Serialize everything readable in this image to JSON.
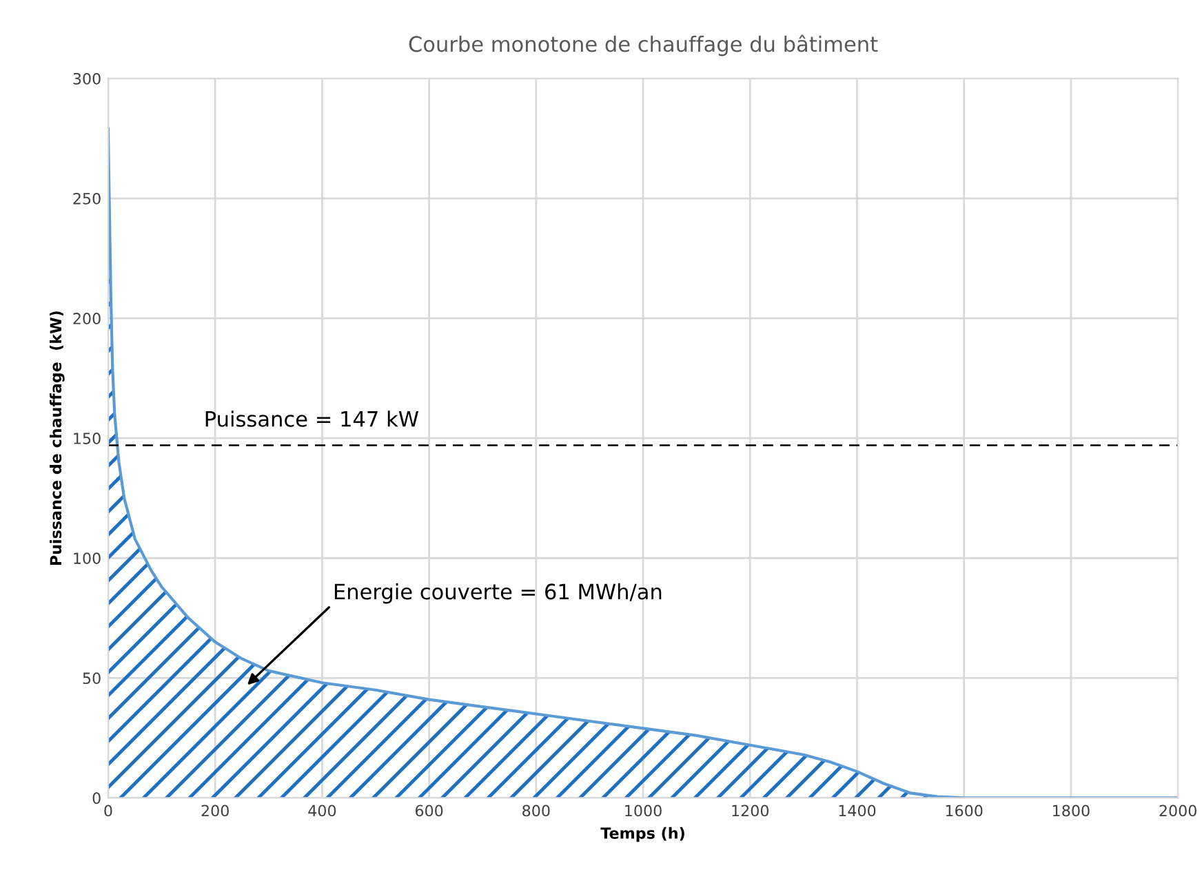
{
  "chart_data": {
    "type": "area",
    "title": "Courbe monotone de chauffage du bâtiment",
    "xlabel": "Temps (h)",
    "ylabel": "Puissance de chauffage  (kW)",
    "series": [
      {
        "color": "#5b9bd5",
        "x": [
          0,
          2,
          5,
          8,
          12,
          20,
          30,
          50,
          80,
          100,
          150,
          200,
          250,
          300,
          400,
          500,
          600,
          700,
          800,
          900,
          1000,
          1100,
          1200,
          1300,
          1350,
          1400,
          1450,
          1500,
          1550,
          1600,
          2000
        ],
        "values": [
          279,
          250,
          210,
          180,
          160,
          140,
          125,
          108,
          95,
          88,
          75,
          65,
          58,
          53,
          48,
          45,
          41,
          38,
          35,
          32,
          29,
          26,
          22,
          18,
          15,
          11,
          6,
          2,
          0.5,
          0,
          0
        ]
      }
    ],
    "ref_lines": [
      {
        "axis": "y",
        "value": 147,
        "label": "Puissance = 147 kW",
        "color": "#000000",
        "line_style": "dashed"
      }
    ],
    "annotations": [
      "Energie couverte = 61 MWh/an"
    ],
    "xlim": [
      0,
      2000
    ],
    "xticks": [
      0,
      200,
      400,
      600,
      800,
      1000,
      1200,
      1400,
      1600,
      1800,
      2000
    ],
    "ylim": [
      0,
      300
    ],
    "yticks": [
      0,
      50,
      100,
      150,
      200,
      250,
      300
    ],
    "grid": true,
    "legend": false
  }
}
